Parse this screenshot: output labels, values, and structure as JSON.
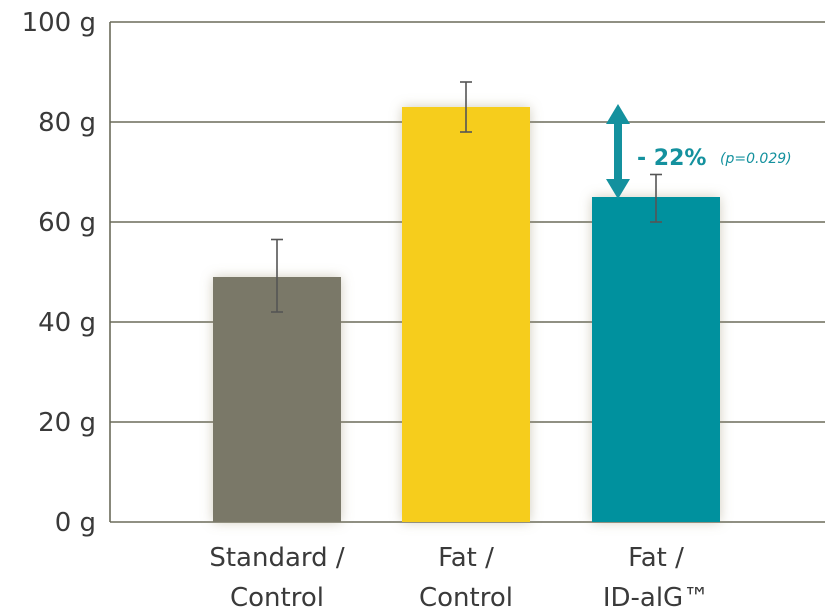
{
  "chart_data": {
    "type": "bar",
    "categories": [
      [
        "Standard /",
        "Control"
      ],
      [
        "Fat /",
        "Control"
      ],
      [
        "Fat /",
        "ID-alG™"
      ]
    ],
    "values": [
      49,
      83,
      65
    ],
    "error": [
      [
        42,
        56.5
      ],
      [
        78,
        88
      ],
      [
        60,
        69.5
      ]
    ],
    "colors": [
      "#7a7868",
      "#f6cd1c",
      "#04919e"
    ],
    "yticks": [
      "0 g",
      "20 g",
      "40 g",
      "60 g",
      "80 g",
      "100 g"
    ],
    "ylim": [
      0,
      100
    ],
    "grid": true,
    "annotation": {
      "text": "- 22%",
      "subtext": "(p=0.029)",
      "from": 83,
      "to": 65,
      "color": "#14919e"
    }
  }
}
